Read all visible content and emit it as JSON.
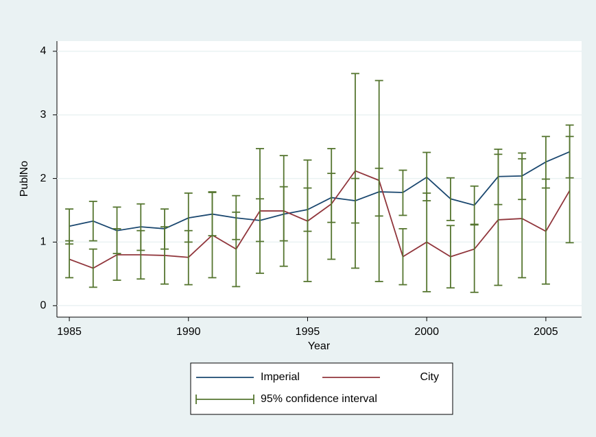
{
  "chart_data": {
    "type": "line",
    "x_label": "Year",
    "y_label": "PublNo",
    "x": [
      1985,
      1986,
      1987,
      1988,
      1989,
      1990,
      1991,
      1992,
      1993,
      1994,
      1995,
      1996,
      1997,
      1998,
      1999,
      2000,
      2001,
      2002,
      2003,
      2004,
      2005,
      2006
    ],
    "series": [
      {
        "name": "Imperial",
        "color": "#1a476f",
        "values": [
          1.25,
          1.33,
          1.18,
          1.24,
          1.21,
          1.38,
          1.44,
          1.38,
          1.34,
          1.44,
          1.51,
          1.7,
          1.65,
          1.79,
          1.78,
          2.02,
          1.68,
          1.58,
          2.03,
          2.04,
          2.26,
          2.42
        ],
        "ci_low": [
          0.97,
          1.02,
          0.82,
          0.87,
          0.89,
          1.0,
          1.1,
          1.04,
          1.01,
          1.02,
          1.17,
          1.31,
          1.3,
          1.41,
          1.42,
          1.65,
          1.34,
          1.27,
          1.59,
          1.67,
          1.85,
          2.01
        ],
        "ci_high": [
          1.52,
          1.64,
          1.55,
          1.6,
          1.52,
          1.77,
          1.79,
          1.73,
          1.68,
          1.87,
          1.85,
          2.08,
          2.0,
          2.16,
          2.13,
          2.41,
          2.01,
          1.88,
          2.46,
          2.4,
          2.66,
          2.84
        ]
      },
      {
        "name": "City",
        "color": "#90353b",
        "values": [
          0.73,
          0.59,
          0.8,
          0.8,
          0.79,
          0.76,
          1.11,
          0.89,
          1.49,
          1.49,
          1.33,
          1.6,
          2.12,
          1.97,
          0.77,
          1.0,
          0.77,
          0.89,
          1.35,
          1.37,
          1.17,
          1.81
        ],
        "ci_low": [
          0.44,
          0.29,
          0.4,
          0.42,
          0.34,
          0.33,
          0.44,
          0.3,
          0.51,
          0.62,
          0.38,
          0.73,
          0.59,
          0.38,
          0.33,
          0.22,
          0.28,
          0.21,
          0.32,
          0.44,
          0.34,
          0.99
        ],
        "ci_high": [
          1.02,
          0.89,
          1.21,
          1.18,
          1.24,
          1.18,
          1.78,
          1.47,
          2.47,
          2.36,
          2.29,
          2.47,
          3.65,
          3.54,
          1.21,
          1.77,
          1.26,
          1.28,
          2.38,
          2.31,
          1.99,
          2.66
        ]
      }
    ],
    "ci_name": "95% confidence interval",
    "ci_color": "#55752f",
    "xlim": [
      1984.48,
      2006.5
    ],
    "xticks": [
      1985,
      1990,
      1995,
      2000,
      2005
    ],
    "ylim": [
      -0.18,
      4.16
    ],
    "yticks": [
      0,
      1,
      2,
      3,
      4
    ],
    "grid": true
  }
}
